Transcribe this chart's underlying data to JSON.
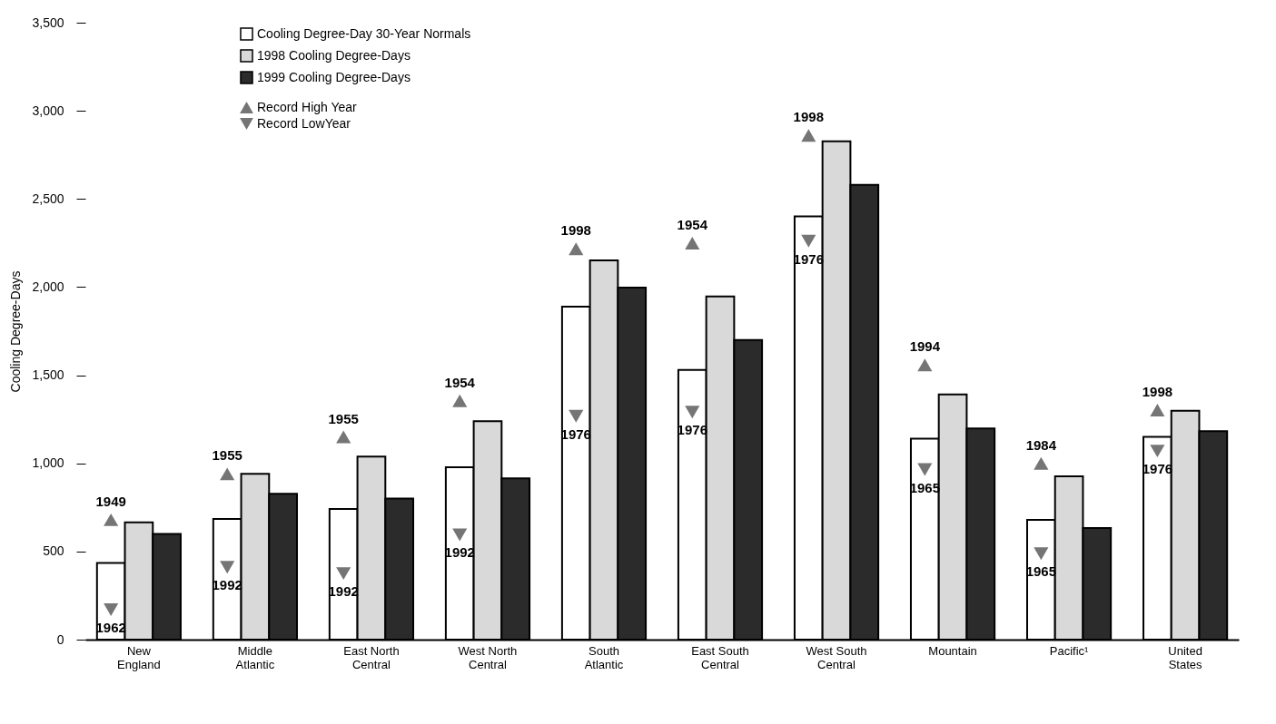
{
  "chart_data": {
    "type": "bar",
    "ylabel": "Cooling Degree-Days",
    "categories": [
      "New England",
      "Middle Atlantic",
      "East North Central",
      "West North Central",
      "South Atlantic",
      "East South Central",
      "West South Central",
      "Mountain",
      "Pacific¹",
      "United States"
    ],
    "series": [
      {
        "name": "Cooling Degree-Day 30-Year Normals",
        "color": "#ffffff",
        "values": [
          435,
          685,
          741,
          978,
          1889,
          1530,
          2401,
          1140,
          679,
          1151
        ]
      },
      {
        "name": "1998 Cooling Degree-Days",
        "color": "#d9d9d9",
        "values": [
          665,
          941,
          1039,
          1239,
          2152,
          1947,
          2827,
          1391,
          926,
          1298
        ]
      },
      {
        "name": "1999 Cooling Degree-Days",
        "color": "#2b2b2b",
        "values": [
          600,
          828,
          800,
          915,
          1997,
          1700,
          2580,
          1198,
          633,
          1182
        ]
      },
      {
        "name": "Record High Year",
        "type": "scatter",
        "marker": "triangle",
        "color": "#3a3a3a",
        "values": [
          680,
          940,
          1150,
          1355,
          2217,
          2249,
          2860,
          1558,
          1000,
          1302
        ]
      },
      {
        "name": "Record LowYear",
        "type": "scatter",
        "marker": "triangle-down",
        "color": "#3a3a3a",
        "values": [
          170,
          410,
          375,
          595,
          1268,
          1291,
          2261,
          965,
          488,
          1070
        ]
      }
    ],
    "annotations": [
      "1949",
      "1955",
      "1955",
      "1954",
      "1998",
      "1954",
      "1998",
      "1994",
      "1984",
      "1998",
      "1962",
      "1992",
      "1992",
      "1992",
      "1976",
      "1976",
      "1976",
      "1965",
      "1965",
      "1976"
    ],
    "ylim": [
      0,
      3500
    ],
    "yticks": [
      0,
      500,
      {
        "value": 1000,
        "label": "1,000"
      },
      {
        "value": 1500,
        "label": "1,500"
      },
      {
        "value": 2000,
        "label": "2,000"
      },
      {
        "value": 2500,
        "label": "2,500"
      },
      {
        "value": 3000,
        "label": "3,000"
      },
      {
        "value": 3500,
        "label": "3,500"
      }
    ],
    "grid": false,
    "legend": "top left"
  }
}
